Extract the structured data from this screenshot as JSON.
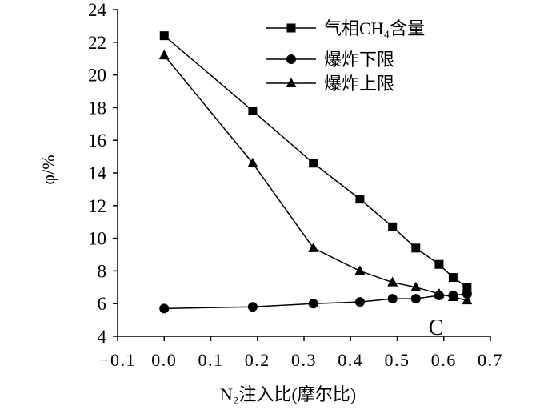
{
  "chart_data": {
    "type": "line",
    "xlabel": "N₂注入比(摩尔比)",
    "ylabel": "φ/%",
    "xlim": [
      -0.1,
      0.7
    ],
    "ylim": [
      4,
      24
    ],
    "x_ticks": [
      -0.1,
      0.0,
      0.1,
      0.2,
      0.3,
      0.4,
      0.5,
      0.6,
      0.7
    ],
    "x_tick_labels": [
      "−0.1",
      "0.0",
      "0.1",
      "0.2",
      "0.3",
      "0.4",
      "0.5",
      "0.6",
      "0.7"
    ],
    "y_ticks": [
      4,
      6,
      8,
      10,
      12,
      14,
      16,
      18,
      20,
      22,
      24
    ],
    "y_tick_labels": [
      "4",
      "6",
      "8",
      "10",
      "12",
      "14",
      "16",
      "18",
      "20",
      "22",
      "24"
    ],
    "grid": false,
    "legend": "top-right",
    "x": [
      0.0,
      0.19,
      0.32,
      0.42,
      0.49,
      0.54,
      0.59,
      0.62,
      0.65
    ],
    "series": [
      {
        "name": "气相CH₄含量",
        "marker": "square",
        "color": "#000000",
        "values": [
          22.4,
          17.8,
          14.6,
          12.4,
          10.7,
          9.4,
          8.4,
          7.6,
          7.0
        ]
      },
      {
        "name": "爆炸下限",
        "marker": "circle",
        "color": "#000000",
        "values": [
          5.7,
          5.8,
          6.0,
          6.1,
          6.3,
          6.3,
          6.5,
          6.5,
          6.6
        ]
      },
      {
        "name": "爆炸上限",
        "marker": "triangle",
        "color": "#000000",
        "values": [
          21.2,
          14.6,
          9.4,
          8.0,
          7.3,
          7.0,
          6.6,
          6.4,
          6.2
        ]
      }
    ],
    "annotations": [
      {
        "text": "C"
      }
    ]
  }
}
